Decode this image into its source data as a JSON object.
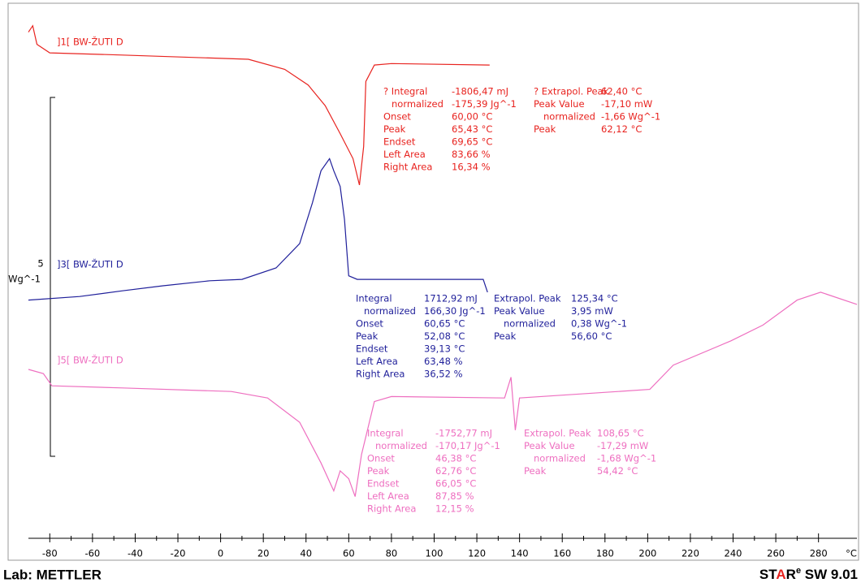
{
  "chart_data": {
    "type": "line",
    "xlim": [
      -90,
      298
    ],
    "xticks": [
      -80,
      -60,
      -40,
      -20,
      0,
      20,
      40,
      60,
      80,
      100,
      120,
      140,
      160,
      180,
      200,
      220,
      240,
      260,
      280
    ],
    "x_unit": "°C",
    "ylim": [
      0,
      7.5
    ],
    "scale_value": "5",
    "scale_unit": "Wg^-1",
    "series": [
      {
        "name": "]1[ BW-ŽUTI D",
        "color": "#e8231f",
        "x": [
          -90,
          -88,
          -86,
          -80,
          -46,
          13,
          30,
          41,
          49,
          56,
          62,
          65,
          67,
          68,
          72,
          80,
          126
        ],
        "values": [
          7.05,
          7.14,
          6.88,
          6.76,
          6.73,
          6.67,
          6.53,
          6.31,
          6.02,
          5.63,
          5.28,
          4.91,
          5.45,
          6.36,
          6.59,
          6.61,
          6.59
        ]
      },
      {
        "name": "]3[ BW-ŽUTI D",
        "color": "#1f1f9a",
        "x": [
          -90,
          -66,
          -46,
          -27,
          -5,
          10,
          26,
          37,
          43,
          47,
          51,
          53,
          56,
          58,
          60,
          64,
          123,
          125
        ],
        "values": [
          3.3,
          3.35,
          3.43,
          3.5,
          3.57,
          3.59,
          3.75,
          4.09,
          4.66,
          5.11,
          5.28,
          5.11,
          4.89,
          4.43,
          3.64,
          3.59,
          3.59,
          3.41
        ]
      },
      {
        "name": "]5[ BW-ŽUTI D",
        "color": "#ee6fc0",
        "x": [
          -90,
          -83,
          -79,
          -46,
          5,
          22,
          37,
          47,
          53,
          56,
          60,
          63,
          66,
          72,
          80,
          133,
          136,
          138,
          140,
          201,
          212,
          239,
          254,
          270,
          281,
          298
        ],
        "values": [
          2.33,
          2.27,
          2.1,
          2.07,
          2.02,
          1.93,
          1.59,
          1.02,
          0.63,
          0.91,
          0.8,
          0.55,
          1.14,
          1.88,
          1.95,
          1.93,
          2.22,
          1.48,
          1.93,
          2.05,
          2.39,
          2.73,
          2.95,
          3.3,
          3.41,
          3.24
        ]
      }
    ],
    "results": [
      {
        "col1": [
          [
            "? Integral",
            "-1806,47 mJ"
          ],
          [
            "normalized",
            "-175,39 Jg^-1"
          ],
          [
            "Onset",
            "60,00 °C"
          ],
          [
            "Peak",
            "65,43 °C"
          ],
          [
            "Endset",
            "69,65 °C"
          ],
          [
            "Left Area",
            "83,66 %"
          ],
          [
            "Right Area",
            "16,34 %"
          ]
        ],
        "col2": [
          [
            "? Extrapol. Peak",
            "62,40 °C"
          ],
          [
            "Peak Value",
            "-17,10 mW"
          ],
          [
            "normalized",
            "-1,66 Wg^-1"
          ],
          [
            "Peak",
            "62,12 °C"
          ]
        ]
      },
      {
        "col1": [
          [
            "Integral",
            "1712,92 mJ"
          ],
          [
            "normalized",
            "166,30 Jg^-1"
          ],
          [
            "Onset",
            "60,65 °C"
          ],
          [
            "Peak",
            "52,08 °C"
          ],
          [
            "Endset",
            "39,13 °C"
          ],
          [
            "Left Area",
            "63,48 %"
          ],
          [
            "Right Area",
            "36,52 %"
          ]
        ],
        "col2": [
          [
            "Extrapol. Peak",
            "125,34 °C"
          ],
          [
            "Peak Value",
            "3,95 mW"
          ],
          [
            "normalized",
            "0,38 Wg^-1"
          ],
          [
            "Peak",
            "56,60 °C"
          ]
        ]
      },
      {
        "col1": [
          [
            "Integral",
            "-1752,77 mJ"
          ],
          [
            "normalized",
            "-170,17 Jg^-1"
          ],
          [
            "Onset",
            "46,38 °C"
          ],
          [
            "Peak",
            "62,76 °C"
          ],
          [
            "Endset",
            "66,05 °C"
          ],
          [
            "Left Area",
            "87,85 %"
          ],
          [
            "Right Area",
            "12,15 %"
          ]
        ],
        "col2": [
          [
            "Extrapol. Peak",
            "108,65 °C"
          ],
          [
            "Peak Value",
            "-17,29 mW"
          ],
          [
            "normalized",
            "-1,68 Wg^-1"
          ],
          [
            "Peak",
            "54,42 °C"
          ]
        ]
      }
    ]
  },
  "footer": {
    "lab": "Lab: METTLER",
    "software": [
      "ST",
      "A",
      "R",
      "e",
      " SW 9.01"
    ]
  }
}
